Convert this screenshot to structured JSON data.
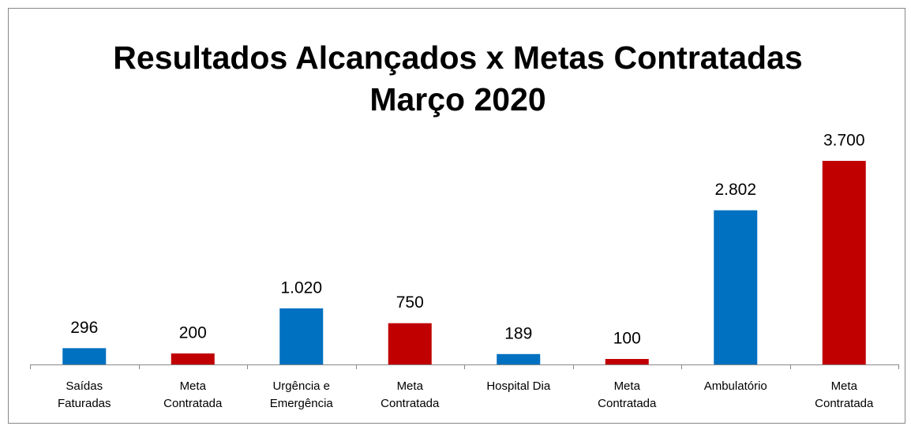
{
  "chart_data": {
    "type": "bar",
    "title": [
      "Resultados Alcançados x Metas Contratadas",
      "Março 2020"
    ],
    "categories": [
      "Saídas Faturadas",
      "Meta Contratada",
      "Urgência e Emergência",
      "Meta Contratada",
      "Hospital Dia",
      "Meta Contratada",
      "Ambulatório",
      "Meta Contratada"
    ],
    "values": [
      296,
      200,
      1020,
      750,
      189,
      100,
      2802,
      3700
    ],
    "value_labels": [
      "296",
      "200",
      "1.020",
      "750",
      "189",
      "100",
      "2.802",
      "3.700"
    ],
    "colors": [
      "#0070c0",
      "#c00000",
      "#0070c0",
      "#c00000",
      "#0070c0",
      "#c00000",
      "#0070c0",
      "#c00000"
    ],
    "ylim": [
      0,
      4000
    ]
  }
}
